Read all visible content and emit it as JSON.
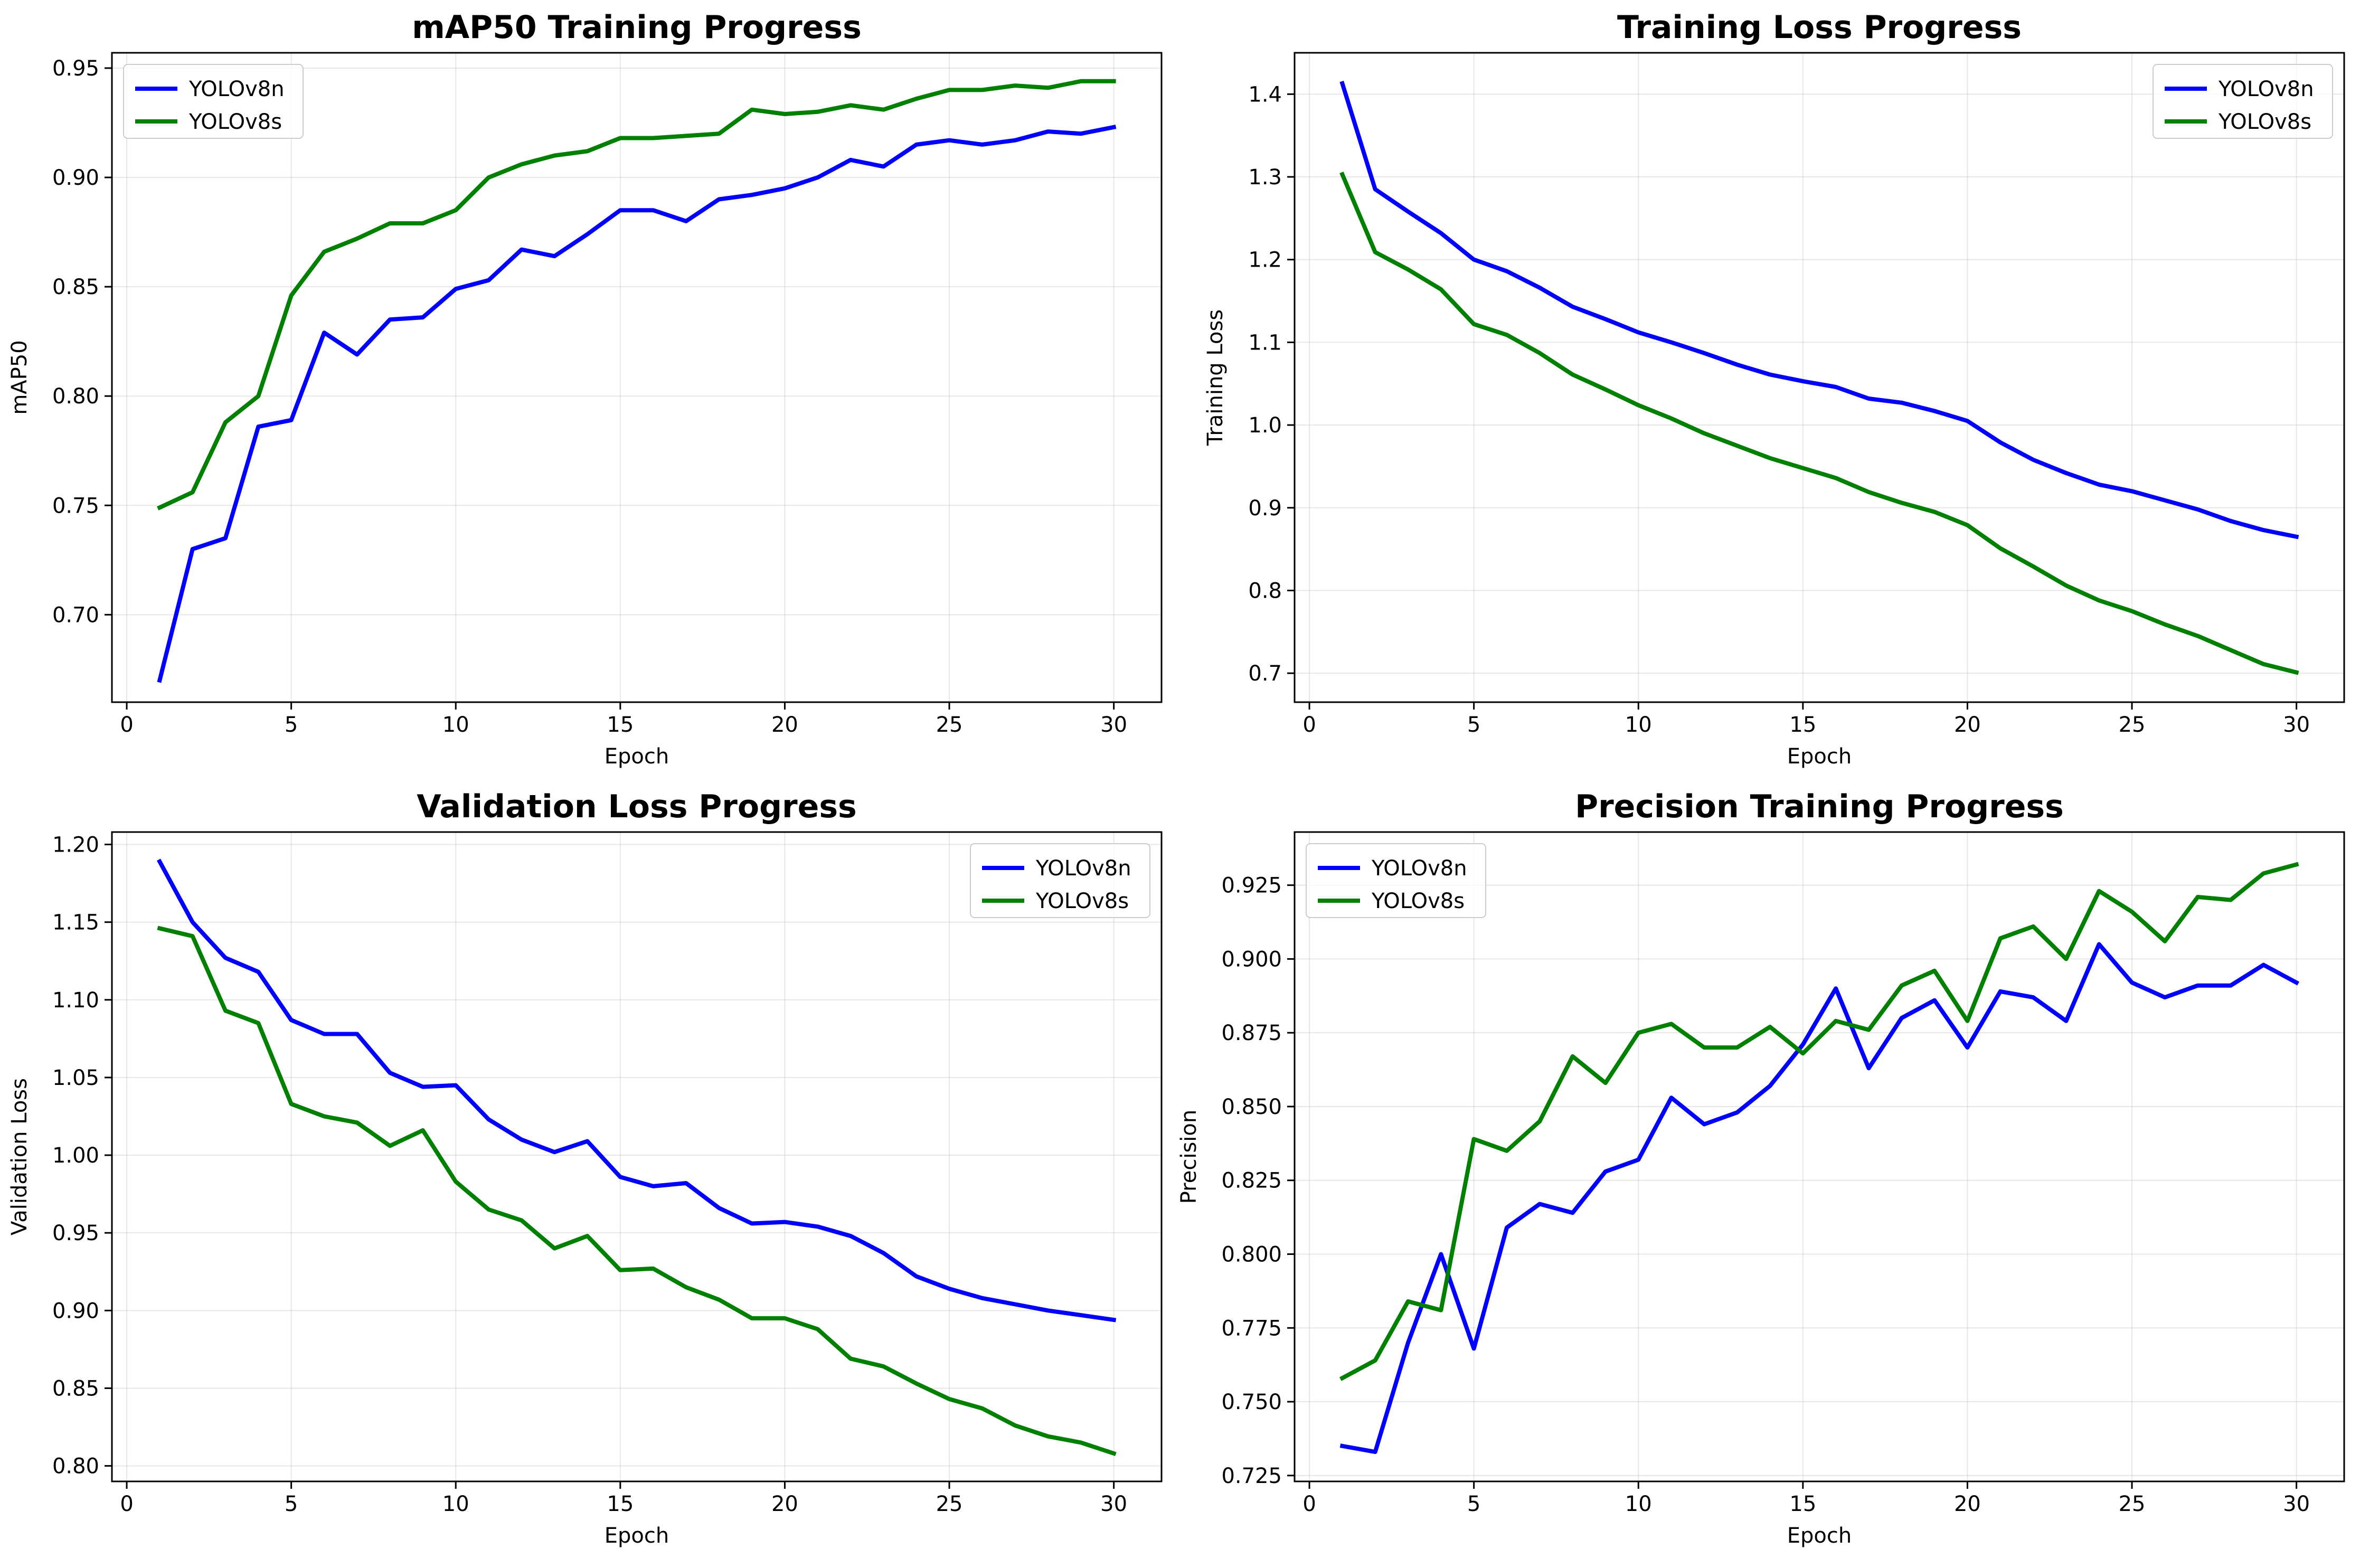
{
  "chart_data": [
    {
      "type": "line",
      "title": "mAP50 Training Progress",
      "xlabel": "Epoch",
      "ylabel": "mAP50",
      "xlim": [
        -0.45,
        31.45
      ],
      "ylim": [
        0.66,
        0.957
      ],
      "xticks": [
        0,
        5,
        10,
        15,
        20,
        25,
        30
      ],
      "yticks": [
        0.7,
        0.75,
        0.8,
        0.85,
        0.9,
        0.95
      ],
      "ytick_decimals": 2,
      "grid": true,
      "legend": "top-left",
      "x": [
        1,
        2,
        3,
        4,
        5,
        6,
        7,
        8,
        9,
        10,
        11,
        12,
        13,
        14,
        15,
        16,
        17,
        18,
        19,
        20,
        21,
        22,
        23,
        24,
        25,
        26,
        27,
        28,
        29,
        30
      ],
      "series": [
        {
          "name": "YOLOv8n",
          "color": "#0000ff",
          "values": [
            0.67,
            0.73,
            0.735,
            0.786,
            0.789,
            0.829,
            0.819,
            0.835,
            0.836,
            0.849,
            0.853,
            0.867,
            0.864,
            0.874,
            0.885,
            0.885,
            0.88,
            0.89,
            0.892,
            0.895,
            0.9,
            0.908,
            0.905,
            0.915,
            0.917,
            0.915,
            0.917,
            0.921,
            0.92,
            0.923
          ]
        },
        {
          "name": "YOLOv8s",
          "color": "#008000",
          "values": [
            0.749,
            0.756,
            0.788,
            0.8,
            0.846,
            0.866,
            0.872,
            0.879,
            0.879,
            0.885,
            0.9,
            0.906,
            0.91,
            0.912,
            0.918,
            0.918,
            0.919,
            0.92,
            0.931,
            0.929,
            0.93,
            0.933,
            0.931,
            0.936,
            0.94,
            0.94,
            0.942,
            0.941,
            0.944,
            0.944
          ]
        }
      ]
    },
    {
      "type": "line",
      "title": "Training Loss Progress",
      "xlabel": "Epoch",
      "ylabel": "Training Loss",
      "xlim": [
        -0.45,
        31.45
      ],
      "ylim": [
        0.665,
        1.45
      ],
      "xticks": [
        0,
        5,
        10,
        15,
        20,
        25,
        30
      ],
      "yticks": [
        0.7,
        0.8,
        0.9,
        1.0,
        1.1,
        1.2,
        1.3,
        1.4
      ],
      "ytick_decimals": 1,
      "grid": true,
      "legend": "top-right",
      "x": [
        1,
        2,
        3,
        4,
        5,
        6,
        7,
        8,
        9,
        10,
        11,
        12,
        13,
        14,
        15,
        16,
        17,
        18,
        19,
        20,
        21,
        22,
        23,
        24,
        25,
        26,
        27,
        28,
        29,
        30
      ],
      "series": [
        {
          "name": "YOLOv8n",
          "color": "#0000ff",
          "values": [
            1.413,
            1.285,
            1.258,
            1.232,
            1.2,
            1.186,
            1.166,
            1.143,
            1.128,
            1.112,
            1.1,
            1.087,
            1.073,
            1.061,
            1.053,
            1.046,
            1.032,
            1.027,
            1.017,
            1.005,
            0.979,
            0.958,
            0.942,
            0.928,
            0.92,
            0.909,
            0.898,
            0.884,
            0.873,
            0.865
          ]
        },
        {
          "name": "YOLOv8s",
          "color": "#008000",
          "values": [
            1.303,
            1.209,
            1.188,
            1.164,
            1.122,
            1.109,
            1.087,
            1.061,
            1.043,
            1.024,
            1.008,
            0.99,
            0.975,
            0.96,
            0.948,
            0.936,
            0.919,
            0.906,
            0.895,
            0.879,
            0.851,
            0.829,
            0.806,
            0.788,
            0.775,
            0.759,
            0.745,
            0.728,
            0.711,
            0.701
          ]
        }
      ]
    },
    {
      "type": "line",
      "title": "Validation Loss Progress",
      "xlabel": "Epoch",
      "ylabel": "Validation Loss",
      "xlim": [
        -0.45,
        31.45
      ],
      "ylim": [
        0.79,
        1.208
      ],
      "xticks": [
        0,
        5,
        10,
        15,
        20,
        25,
        30
      ],
      "yticks": [
        0.8,
        0.85,
        0.9,
        0.95,
        1.0,
        1.05,
        1.1,
        1.15,
        1.2
      ],
      "ytick_decimals": 2,
      "grid": true,
      "legend": "top-right",
      "x": [
        1,
        2,
        3,
        4,
        5,
        6,
        7,
        8,
        9,
        10,
        11,
        12,
        13,
        14,
        15,
        16,
        17,
        18,
        19,
        20,
        21,
        22,
        23,
        24,
        25,
        26,
        27,
        28,
        29,
        30
      ],
      "series": [
        {
          "name": "YOLOv8n",
          "color": "#0000ff",
          "values": [
            1.189,
            1.15,
            1.127,
            1.118,
            1.087,
            1.078,
            1.078,
            1.053,
            1.044,
            1.045,
            1.023,
            1.01,
            1.002,
            1.009,
            0.986,
            0.98,
            0.982,
            0.966,
            0.956,
            0.957,
            0.954,
            0.948,
            0.937,
            0.922,
            0.914,
            0.908,
            0.904,
            0.9,
            0.897,
            0.894
          ]
        },
        {
          "name": "YOLOv8s",
          "color": "#008000",
          "values": [
            1.146,
            1.141,
            1.093,
            1.085,
            1.033,
            1.025,
            1.021,
            1.006,
            1.016,
            0.983,
            0.965,
            0.958,
            0.94,
            0.948,
            0.926,
            0.927,
            0.915,
            0.907,
            0.895,
            0.895,
            0.888,
            0.869,
            0.864,
            0.853,
            0.843,
            0.837,
            0.826,
            0.819,
            0.815,
            0.808
          ]
        }
      ]
    },
    {
      "type": "line",
      "title": "Precision Training Progress",
      "xlabel": "Epoch",
      "ylabel": "Precision",
      "xlim": [
        -0.45,
        31.45
      ],
      "ylim": [
        0.723,
        0.943
      ],
      "xticks": [
        0,
        5,
        10,
        15,
        20,
        25,
        30
      ],
      "yticks": [
        0.725,
        0.75,
        0.775,
        0.8,
        0.825,
        0.85,
        0.875,
        0.9,
        0.925
      ],
      "ytick_decimals": 3,
      "grid": true,
      "legend": "top-left",
      "x": [
        1,
        2,
        3,
        4,
        5,
        6,
        7,
        8,
        9,
        10,
        11,
        12,
        13,
        14,
        15,
        16,
        17,
        18,
        19,
        20,
        21,
        22,
        23,
        24,
        25,
        26,
        27,
        28,
        29,
        30
      ],
      "series": [
        {
          "name": "YOLOv8n",
          "color": "#0000ff",
          "values": [
            0.735,
            0.733,
            0.77,
            0.8,
            0.768,
            0.809,
            0.817,
            0.814,
            0.828,
            0.832,
            0.853,
            0.844,
            0.848,
            0.857,
            0.871,
            0.89,
            0.863,
            0.88,
            0.886,
            0.87,
            0.889,
            0.887,
            0.879,
            0.905,
            0.892,
            0.887,
            0.891,
            0.891,
            0.898,
            0.892
          ]
        },
        {
          "name": "YOLOv8s",
          "color": "#008000",
          "values": [
            0.758,
            0.764,
            0.784,
            0.781,
            0.839,
            0.835,
            0.845,
            0.867,
            0.858,
            0.875,
            0.878,
            0.87,
            0.87,
            0.877,
            0.868,
            0.879,
            0.876,
            0.891,
            0.896,
            0.879,
            0.907,
            0.911,
            0.9,
            0.923,
            0.916,
            0.906,
            0.921,
            0.92,
            0.929,
            0.932
          ]
        }
      ]
    }
  ]
}
